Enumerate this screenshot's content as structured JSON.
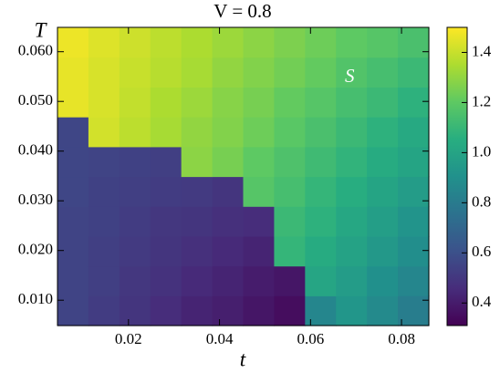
{
  "chart_data": {
    "type": "heatmap",
    "title": "V = 0.8",
    "xlabel": "t",
    "ylabel": "T",
    "xbins": [
      0.0044,
      0.0112,
      0.018,
      0.0248,
      0.0316,
      0.0384,
      0.0452,
      0.052,
      0.0588,
      0.0656,
      0.0724,
      0.0792,
      0.086
    ],
    "ybins": [
      0.0049,
      0.0109,
      0.0169,
      0.0229,
      0.0289,
      0.0349,
      0.0409,
      0.0469,
      0.0529,
      0.0589,
      0.0649
    ],
    "values": [
      [
        0.55,
        0.52,
        0.49,
        0.46,
        0.43,
        0.41,
        0.38,
        0.35,
        0.85,
        0.93,
        0.87,
        0.81
      ],
      [
        0.55,
        0.53,
        0.5,
        0.48,
        0.45,
        0.43,
        0.4,
        0.38,
        1.01,
        0.96,
        0.9,
        0.85
      ],
      [
        0.55,
        0.53,
        0.51,
        0.49,
        0.47,
        0.45,
        0.43,
        1.09,
        1.04,
        0.99,
        0.94,
        0.89
      ],
      [
        0.55,
        0.54,
        0.52,
        0.5,
        0.49,
        0.47,
        0.46,
        1.11,
        1.07,
        1.02,
        0.97,
        0.92
      ],
      [
        0.56,
        0.54,
        0.53,
        0.52,
        0.51,
        0.49,
        1.18,
        1.14,
        1.09,
        1.05,
        1.0,
        0.96
      ],
      [
        0.56,
        0.55,
        0.54,
        0.53,
        1.29,
        1.25,
        1.2,
        1.16,
        1.12,
        1.08,
        1.04,
        1.0
      ],
      [
        0.56,
        1.42,
        1.38,
        1.34,
        1.3,
        1.27,
        1.23,
        1.19,
        1.15,
        1.11,
        1.07,
        1.03
      ],
      [
        1.46,
        1.43,
        1.39,
        1.35,
        1.32,
        1.28,
        1.25,
        1.21,
        1.18,
        1.14,
        1.11,
        1.07
      ],
      [
        1.46,
        1.43,
        1.4,
        1.37,
        1.34,
        1.3,
        1.27,
        1.24,
        1.21,
        1.17,
        1.14,
        1.11
      ],
      [
        1.47,
        1.44,
        1.41,
        1.38,
        1.35,
        1.32,
        1.29,
        1.26,
        1.23,
        1.2,
        1.18,
        1.15
      ]
    ],
    "colormap": "viridis",
    "xlim": [
      0.0044,
      0.086
    ],
    "ylim": [
      0.0049,
      0.0649
    ],
    "xticks": [
      0.02,
      0.04,
      0.06,
      0.08
    ],
    "yticks": [
      {
        "value": 0.01,
        "label": "0.010"
      },
      {
        "value": 0.02,
        "label": "0.020"
      },
      {
        "value": 0.03,
        "label": "0.030"
      },
      {
        "value": 0.04,
        "label": "0.040"
      },
      {
        "value": 0.05,
        "label": "0.050"
      },
      {
        "value": 0.06,
        "label": "0.060"
      }
    ],
    "clim": [
      0.31,
      1.5
    ],
    "cticks": [
      0.4,
      0.6,
      0.8,
      {
        "value": 1,
        "label": "1.0"
      },
      1.2,
      1.4
    ],
    "annotations": [
      {
        "text": "S",
        "x": 0.0686,
        "y": 0.0548
      }
    ]
  }
}
